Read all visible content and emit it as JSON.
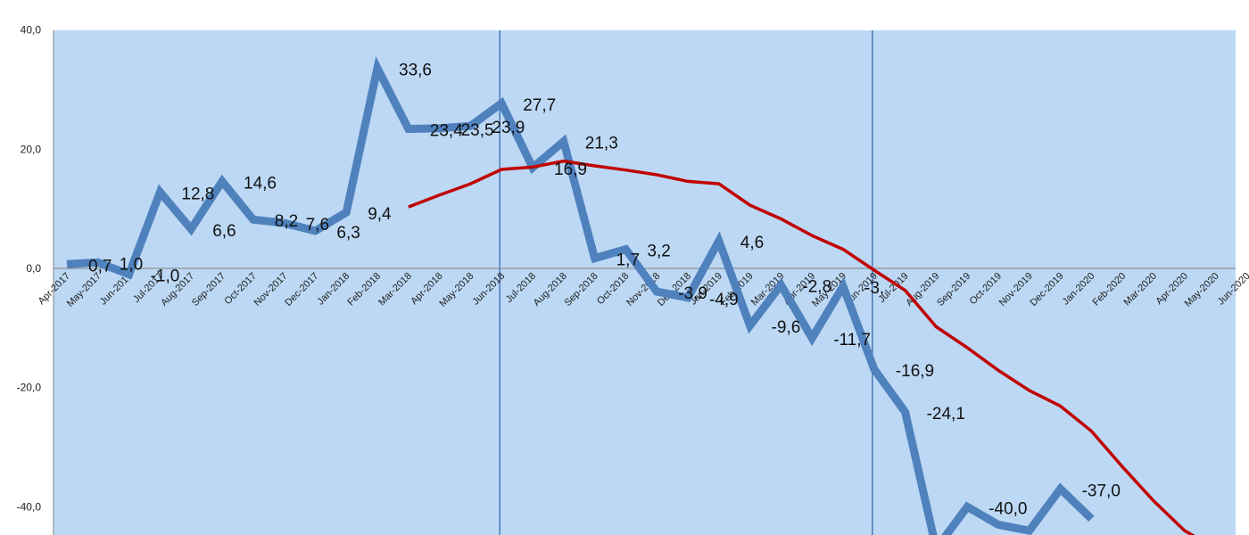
{
  "chart_data": {
    "type": "line",
    "title": "",
    "xlabel": "",
    "ylabel": "",
    "ylim": [
      -45,
      40
    ],
    "yticks": [
      "40,0",
      "20,0",
      "0,0",
      "-20,0",
      "-40,0"
    ],
    "grid": false,
    "legend": "none",
    "categories": [
      "Apr-2017",
      "May-2017",
      "Jun-2017",
      "Jul-2017",
      "Aug-2017",
      "Sep-2017",
      "Oct-2017",
      "Nov-2017",
      "Dec-2017",
      "Jan-2018",
      "Feb-2018",
      "Mar-2018",
      "Apr-2018",
      "May-2018",
      "Jun-2018",
      "Jul-2018",
      "Aug-2018",
      "Sep-2018",
      "Oct-2018",
      "Nov-2018",
      "Dec-2018",
      "Jan-2019",
      "Feb-2019",
      "Mar-2019",
      "Apr-2019",
      "May-2019",
      "Jun-2019",
      "Jul-2019",
      "Aug-2019",
      "Sep-2019",
      "Oct-2019",
      "Nov-2019",
      "Dec-2019",
      "Jan-2020",
      "Feb-2020",
      "Mar-2020",
      "Apr-2020",
      "May-2020",
      "Jun-2020"
    ],
    "series": [
      {
        "color": "#4f81bd",
        "values": [
          0.7,
          1.0,
          -1.0,
          12.8,
          6.6,
          14.6,
          8.2,
          7.6,
          6.3,
          9.4,
          33.6,
          23.4,
          23.5,
          23.9,
          27.7,
          16.9,
          21.3,
          1.7,
          3.2,
          -3.9,
          -4.9,
          4.6,
          -9.6,
          -2.8,
          -11.7,
          -3.0,
          -16.9,
          -24.1,
          -47.0,
          -40.0,
          -43.0,
          -44.0,
          -37.0,
          -42.0,
          null,
          null,
          null,
          null,
          null
        ],
        "labels": [
          "0,7",
          "1,0",
          "-1,0",
          "12,8",
          "6,6",
          "14,6",
          "8,2",
          "7,6",
          "6,3",
          "9,4",
          "33,6",
          "23,4",
          "23,5",
          "23,9",
          "27,7",
          "16,9",
          "21,3",
          "1,7",
          "3,2",
          "-3,9",
          "-4,9",
          "4,6",
          "-9,6",
          "-2,8",
          "-11,7",
          "-3,",
          "-16,9",
          "-24,1",
          "",
          "-40,0",
          "",
          "",
          "-37,0",
          "",
          "",
          "",
          "",
          "",
          ""
        ]
      },
      {
        "color": "#c00000",
        "values": [
          null,
          null,
          null,
          null,
          null,
          null,
          null,
          null,
          null,
          null,
          null,
          10.3,
          12.3,
          14.2,
          16.6,
          17.0,
          18.0,
          17.2,
          16.5,
          15.7,
          14.6,
          14.2,
          10.6,
          8.3,
          5.5,
          3.2,
          -0.3,
          -3.7,
          -9.8,
          -13.3,
          -17.1,
          -20.5,
          -23.1,
          -27.3,
          -33.3,
          -39.0,
          -44.0,
          -47.0,
          null
        ]
      }
    ]
  },
  "colors": {
    "plot_background": "#bcd8f4",
    "divider": "#4a78b8",
    "axis": "#808080"
  }
}
